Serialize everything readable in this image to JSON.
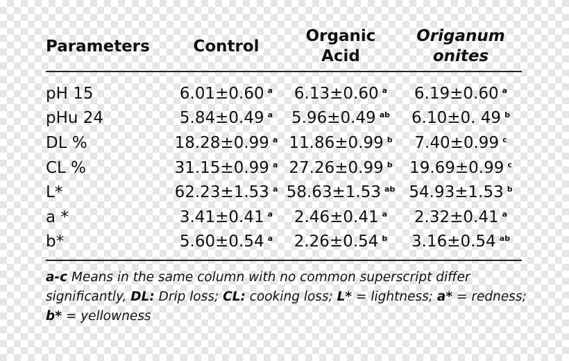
{
  "table": {
    "headers": {
      "parameters": "Parameters",
      "control": "Control",
      "organic_line1": "Organic",
      "organic_line2": "Acid",
      "origanum_line1": "Origanum",
      "origanum_line2": "onites"
    },
    "rows": [
      {
        "param": "pH 15",
        "control": "6.01±0.60",
        "control_sup": "a",
        "organic": "6.13±0.60",
        "organic_sup": "a",
        "origanum": "6.19±0.60",
        "origanum_sup": "a"
      },
      {
        "param": "pHu 24",
        "control": "5.84±0.49",
        "control_sup": "a",
        "organic": "5.96±0.49",
        "organic_sup": "ab",
        "origanum": "6.10±0. 49",
        "origanum_sup": "b"
      },
      {
        "param": "DL %",
        "control": "18.28±0.99",
        "control_sup": "a",
        "organic": "11.86±0.99",
        "organic_sup": "b",
        "origanum": "7.40±0.99",
        "origanum_sup": "c"
      },
      {
        "param": "CL %",
        "control": "31.15±0.99",
        "control_sup": "a",
        "organic": "27.26±0.99",
        "organic_sup": "b",
        "origanum": "19.69±0.99",
        "origanum_sup": "c"
      },
      {
        "param": "L*",
        "control": "62.23±1.53",
        "control_sup": "a",
        "organic": "58.63±1.53",
        "organic_sup": "ab",
        "origanum": "54.93±1.53",
        "origanum_sup": "b"
      },
      {
        "param": "a *",
        "control": "3.41±0.41",
        "control_sup": "a",
        "organic": "2.46±0.41",
        "organic_sup": "a",
        "origanum": "2.32±0.41",
        "origanum_sup": "a"
      },
      {
        "param": "b*",
        "control": "5.60±0.54",
        "control_sup": "a",
        "organic": "2.26±0.54",
        "organic_sup": "b",
        "origanum": "3.16±0.54",
        "origanum_sup": "ab"
      }
    ]
  },
  "footnote": {
    "ac": "a-c",
    "t1": " Means in the same column with no common superscript differ significantly, ",
    "dl": "DL:",
    "t2": " Drip loss; ",
    "cl": "CL:",
    "t3": " cooking loss; ",
    "l": "L*",
    "t4": " = lightness; ",
    "a": "a*",
    "t5": " = redness; ",
    "b": "b*",
    "t6": " = yellowness"
  }
}
